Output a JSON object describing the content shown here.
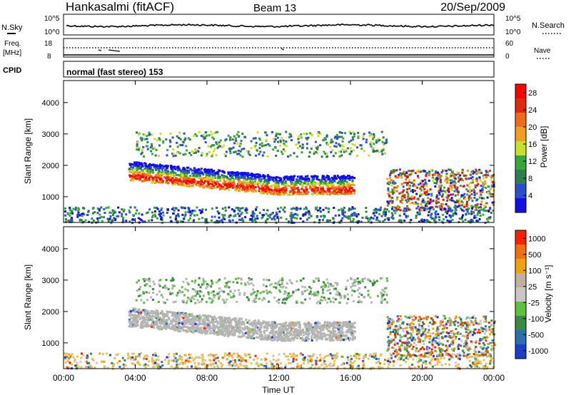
{
  "header": {
    "station": "Hankasalmi (fitACF)",
    "beam": "Beam 13",
    "date": "20/Sep/2009"
  },
  "summary": {
    "nsky_label": "N.Sky",
    "nsky_ticks": [
      "10^5",
      "10^0"
    ],
    "nsearch_label": "N.Search",
    "nsearch_ticks": [
      "10^5",
      "10^0"
    ],
    "freq_label": "Freq.",
    "freq_unit": "[MHz]",
    "freq_ticks": [
      "18",
      "8"
    ],
    "nave_label": "Nave",
    "nave_ticks": [
      "60",
      "0"
    ],
    "cpid_label": "CPID",
    "cpid_text": "normal (fast stereo) 153"
  },
  "colors": {
    "power_scale": [
      "#1010e6",
      "#2a4fd0",
      "#2f7d4a",
      "#36a83a",
      "#c9e02a",
      "#f0a020",
      "#f06a18",
      "#e02a10",
      "#ff0000"
    ],
    "velocity_scale": [
      "#1a3fc8",
      "#2a6fb0",
      "#3a8a40",
      "#5cc040",
      "#c8c8c0",
      "#c0b0a0",
      "#f0a010",
      "#f07010",
      "#ff2000"
    ],
    "ground_scatter": "#b4b4b4"
  },
  "chart_data": [
    {
      "type": "heatmap",
      "title": "Power",
      "xlabel": "Time UT",
      "ylabel": "Slant Range [km]",
      "xlim": [
        "00:00",
        "24:00"
      ],
      "ylim": [
        180,
        4700
      ],
      "x_ticks": [
        "00:00",
        "04:00",
        "08:00",
        "12:00",
        "16:00",
        "20:00",
        "00:00"
      ],
      "y_ticks": [
        1000,
        2000,
        3000,
        4000
      ],
      "colorbar": {
        "label": "Power [dB]",
        "ticks": [
          4,
          8,
          12,
          16,
          20,
          24,
          28
        ],
        "range": [
          0,
          30
        ]
      }
    },
    {
      "type": "heatmap",
      "title": "Velocity",
      "xlabel": "Time UT",
      "ylabel": "Slant Range [km]",
      "xlim": [
        "00:00",
        "24:00"
      ],
      "ylim": [
        180,
        4700
      ],
      "x_ticks": [
        "00:00",
        "04:00",
        "08:00",
        "12:00",
        "16:00",
        "20:00",
        "00:00"
      ],
      "y_ticks": [
        1000,
        2000,
        3000,
        4000
      ],
      "colorbar": {
        "label": "Velocity [m s⁻¹]",
        "ticks": [
          1000,
          500,
          100,
          25,
          -25,
          -100,
          -500,
          -1000
        ]
      }
    }
  ],
  "axis_label": {
    "time": "Time UT"
  }
}
